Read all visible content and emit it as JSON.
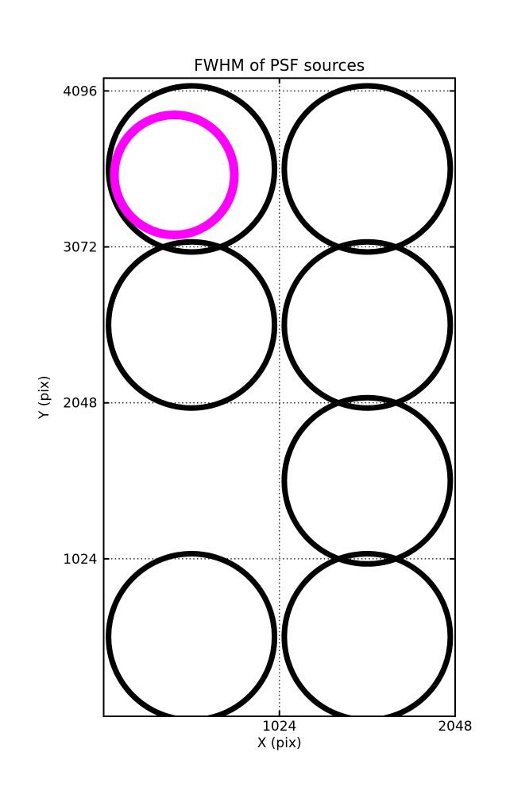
{
  "page": {
    "background": "#ffffff"
  },
  "chart_data": {
    "type": "scatter",
    "title": "FWHM of PSF sources",
    "xlabel": "X (pix)",
    "ylabel": "Y (pix)",
    "xlim": [
      0,
      2048
    ],
    "ylim": [
      -10,
      4180
    ],
    "x_ticks": [
      1024,
      2048
    ],
    "y_ticks": [
      1024,
      2048,
      3072,
      4096
    ],
    "grid": {
      "style": "dotted",
      "color": "#000000"
    },
    "legend": "none",
    "axis_color": "#000000",
    "series": [
      {
        "name": "PSF sources",
        "marker": "circle-outline",
        "color": "#000000",
        "stroke_px": 7,
        "radius_px": 104.5,
        "points": [
          [
            512,
            3584
          ],
          [
            1536,
            3584
          ],
          [
            512,
            2560
          ],
          [
            1536,
            2560
          ],
          [
            1536,
            1536
          ],
          [
            512,
            512
          ],
          [
            1536,
            512
          ]
        ]
      },
      {
        "name": "highlighted source",
        "marker": "circle-outline",
        "color": "#ff00ff",
        "stroke_px": 11,
        "radius_px": 75.5,
        "points": [
          [
            412,
            3545
          ]
        ]
      }
    ]
  }
}
